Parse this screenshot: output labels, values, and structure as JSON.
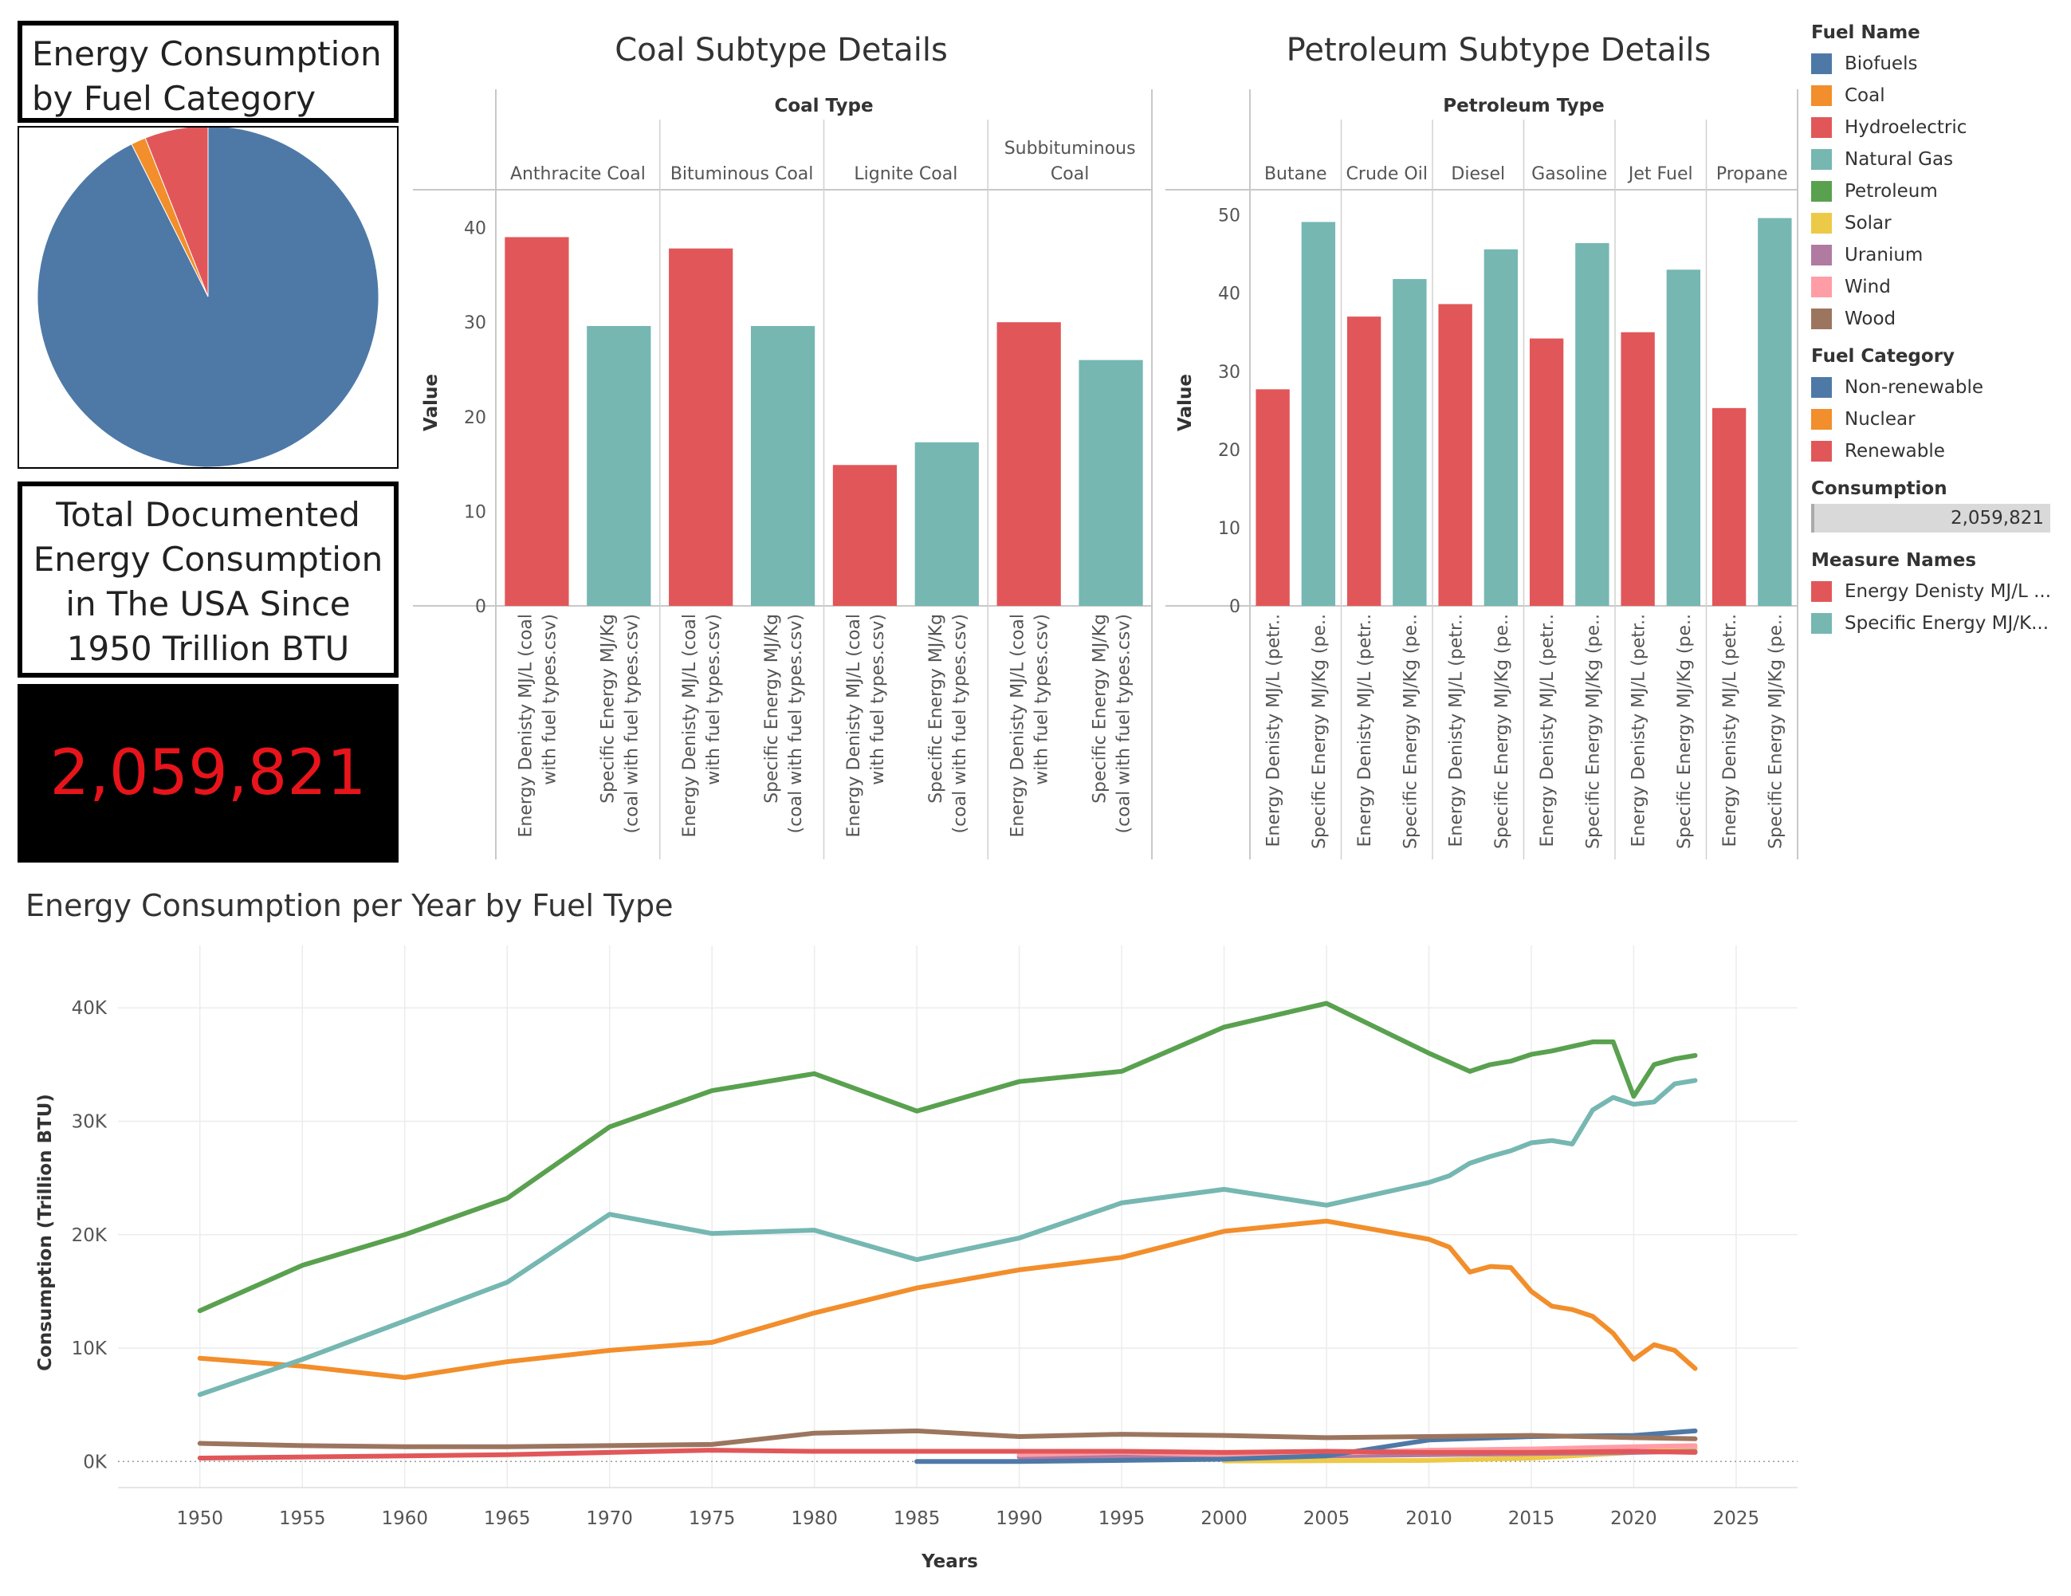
{
  "pie_panel": {
    "title": "Energy Consumption by Fuel Category"
  },
  "total_panel": {
    "title": "Total Documented Energy Consumption in The USA Since 1950 Trillion BTU",
    "value": "2,059,821",
    "value_color": "#e8141b"
  },
  "coal_chart": {
    "title": "Coal Subtype Details",
    "header": "Coal Type",
    "ylabel": "Value"
  },
  "petroleum_chart": {
    "title": "Petroleum Subtype Details",
    "header": "Petroleum Type",
    "ylabel": "Value"
  },
  "line_chart": {
    "title": "Energy Consumption per Year by Fuel Type"
  },
  "legend": {
    "fuel_name_title": "Fuel Name",
    "fuel_names": [
      {
        "label": "Biofuels",
        "color": "#4e79a7"
      },
      {
        "label": "Coal",
        "color": "#f28e2b"
      },
      {
        "label": "Hydroelectric",
        "color": "#e15759"
      },
      {
        "label": "Natural Gas",
        "color": "#76b7b2"
      },
      {
        "label": "Petroleum",
        "color": "#59a14f"
      },
      {
        "label": "Solar",
        "color": "#edc948"
      },
      {
        "label": "Uranium",
        "color": "#b07aa1"
      },
      {
        "label": "Wind",
        "color": "#ff9da7"
      },
      {
        "label": "Wood",
        "color": "#9c755f"
      }
    ],
    "fuel_category_title": "Fuel Category",
    "fuel_categories": [
      {
        "label": "Non-renewable",
        "color": "#4e79a7"
      },
      {
        "label": "Nuclear",
        "color": "#f28e2b"
      },
      {
        "label": "Renewable",
        "color": "#e15759"
      }
    ],
    "consumption_title": "Consumption",
    "consumption_value": "2,059,821",
    "measure_names_title": "Measure Names",
    "measure_names": [
      {
        "label": "Energy Denisty MJ/L ...",
        "color": "#e15759"
      },
      {
        "label": "Specific Energy MJ/K...",
        "color": "#76b7b2"
      }
    ]
  },
  "chart_data": [
    {
      "type": "pie",
      "title": "Energy Consumption by Fuel Category",
      "categories": [
        "Non-renewable",
        "Nuclear",
        "Renewable"
      ],
      "values": [
        92.6,
        1.4,
        6.0
      ],
      "colors": [
        "#4e79a7",
        "#f28e2b",
        "#e15759"
      ]
    },
    {
      "type": "bar",
      "title": "Coal Subtype Details",
      "group_header": "Coal Type",
      "ylabel": "Value",
      "ylim": [
        0,
        43
      ],
      "yticks": [
        0,
        10,
        20,
        30,
        40
      ],
      "groups": [
        "Anthracite Coal",
        "Bituminous Coal",
        "Lignite Coal",
        "Subbituminous Coal"
      ],
      "group_labels": [
        [
          "Anthracite Coal"
        ],
        [
          "Bituminous Coal"
        ],
        [
          "Lignite Coal"
        ],
        [
          "Subbituminous",
          "Coal"
        ]
      ],
      "measure_labels": [
        [
          "Energy Denisty MJ/L (coal",
          "with fuel types.csv)"
        ],
        [
          "Specific Energy MJ/Kg",
          "(coal with fuel types.csv)"
        ]
      ],
      "series": [
        {
          "name": "Energy Denisty MJ/L (coal with fuel types.csv)",
          "color": "#e15759",
          "values": [
            39.0,
            37.8,
            14.9,
            30.0
          ]
        },
        {
          "name": "Specific Energy MJ/Kg (coal with fuel types.csv)",
          "color": "#76b7b2",
          "values": [
            29.6,
            29.6,
            17.3,
            26.0
          ]
        }
      ]
    },
    {
      "type": "bar",
      "title": "Petroleum Subtype Details",
      "group_header": "Petroleum Type",
      "ylabel": "Value",
      "ylim": [
        0,
        52
      ],
      "yticks": [
        0,
        10,
        20,
        30,
        40,
        50
      ],
      "groups": [
        "Butane",
        "Crude Oil",
        "Diesel",
        "Gasoline",
        "Jet Fuel",
        "Propane"
      ],
      "measure_labels": [
        [
          "Energy Denisty MJ/L (petr.."
        ],
        [
          "Specific Energy MJ/Kg (pe.."
        ]
      ],
      "series": [
        {
          "name": "Energy Denisty MJ/L (petr..",
          "color": "#e15759",
          "values": [
            27.7,
            37.0,
            38.6,
            34.2,
            35.0,
            25.3
          ]
        },
        {
          "name": "Specific Energy MJ/Kg (pe..",
          "color": "#76b7b2",
          "values": [
            49.1,
            41.8,
            45.6,
            46.4,
            43.0,
            49.6
          ]
        }
      ]
    },
    {
      "type": "line",
      "title": "Energy Consumption per Year by Fuel Type",
      "xlabel": "Years",
      "ylabel": "Consumption (Trillion BTU)",
      "xlim": [
        1946,
        2028
      ],
      "ylim": [
        -2300,
        45500
      ],
      "xticks": [
        1950,
        1955,
        1960,
        1965,
        1970,
        1975,
        1980,
        1985,
        1990,
        1995,
        2000,
        2005,
        2010,
        2015,
        2020,
        2025
      ],
      "yticks": [
        0,
        10000,
        20000,
        30000,
        40000
      ],
      "ytick_labels": [
        "0K",
        "10K",
        "20K",
        "30K",
        "40K"
      ],
      "series": [
        {
          "name": "Petroleum",
          "color": "#59a14f",
          "x": [
            1950,
            1955,
            1960,
            1965,
            1970,
            1975,
            1980,
            1985,
            1990,
            1995,
            2000,
            2005,
            2010,
            2011,
            2012,
            2013,
            2014,
            2015,
            2016,
            2017,
            2018,
            2019,
            2020,
            2021,
            2022,
            2023
          ],
          "y": [
            13300,
            17300,
            20000,
            23200,
            29500,
            32700,
            34200,
            30900,
            33500,
            34400,
            38300,
            40400,
            36000,
            35200,
            34400,
            35000,
            35300,
            35900,
            36200,
            36600,
            37000,
            37000,
            32200,
            35000,
            35500,
            35800
          ]
        },
        {
          "name": "Natural Gas",
          "color": "#76b7b2",
          "x": [
            1950,
            1955,
            1960,
            1965,
            1970,
            1975,
            1980,
            1985,
            1990,
            1995,
            2000,
            2005,
            2010,
            2011,
            2012,
            2013,
            2014,
            2015,
            2016,
            2017,
            2018,
            2019,
            2020,
            2021,
            2022,
            2023
          ],
          "y": [
            5900,
            9000,
            12400,
            15800,
            21800,
            20100,
            20400,
            17800,
            19700,
            22800,
            24000,
            22600,
            24600,
            25200,
            26300,
            26900,
            27400,
            28100,
            28300,
            28000,
            31000,
            32100,
            31500,
            31700,
            33300,
            33600
          ]
        },
        {
          "name": "Coal",
          "color": "#f28e2b",
          "x": [
            1950,
            1955,
            1960,
            1965,
            1970,
            1975,
            1980,
            1985,
            1990,
            1995,
            2000,
            2005,
            2010,
            2011,
            2012,
            2013,
            2014,
            2015,
            2016,
            2017,
            2018,
            2019,
            2020,
            2021,
            2022,
            2023
          ],
          "y": [
            9100,
            8400,
            7400,
            8800,
            9800,
            10500,
            13100,
            15300,
            16900,
            18000,
            20300,
            21200,
            19600,
            18900,
            16700,
            17200,
            17100,
            15000,
            13700,
            13400,
            12800,
            11300,
            9000,
            10300,
            9800,
            8200
          ]
        },
        {
          "name": "Wood",
          "color": "#9c755f",
          "x": [
            1950,
            1955,
            1960,
            1965,
            1970,
            1975,
            1980,
            1985,
            1990,
            1995,
            2000,
            2005,
            2010,
            2015,
            2020,
            2023
          ],
          "y": [
            1600,
            1400,
            1300,
            1300,
            1400,
            1500,
            2500,
            2700,
            2200,
            2400,
            2300,
            2100,
            2200,
            2300,
            2100,
            2000
          ]
        },
        {
          "name": "Hydroelectric",
          "color": "#e15759",
          "x": [
            1950,
            1955,
            1960,
            1965,
            1970,
            1975,
            1980,
            1985,
            1990,
            1995,
            2000,
            2005,
            2010,
            2015,
            2020,
            2023
          ],
          "y": [
            300,
            400,
            500,
            600,
            800,
            1000,
            900,
            900,
            900,
            900,
            800,
            900,
            800,
            800,
            900,
            800
          ]
        },
        {
          "name": "Biofuels",
          "color": "#4e79a7",
          "x": [
            1985,
            1990,
            1995,
            2000,
            2005,
            2010,
            2015,
            2020,
            2023
          ],
          "y": [
            0,
            0,
            100,
            200,
            500,
            1900,
            2200,
            2300,
            2700
          ]
        },
        {
          "name": "Wind",
          "color": "#ff9da7",
          "x": [
            1990,
            1995,
            2000,
            2005,
            2010,
            2015,
            2020,
            2023
          ],
          "y": [
            600,
            800,
            600,
            700,
            1000,
            1100,
            1300,
            1400
          ]
        },
        {
          "name": "Uranium",
          "color": "#b07aa1",
          "x": [
            1990,
            1995,
            2000,
            2005,
            2010,
            2015,
            2020,
            2023
          ],
          "y": [
            400,
            500,
            400,
            500,
            600,
            700,
            800,
            900
          ]
        },
        {
          "name": "Solar",
          "color": "#edc948",
          "x": [
            2000,
            2005,
            2010,
            2015,
            2020,
            2023
          ],
          "y": [
            50,
            70,
            100,
            300,
            800,
            1200
          ]
        }
      ]
    }
  ]
}
